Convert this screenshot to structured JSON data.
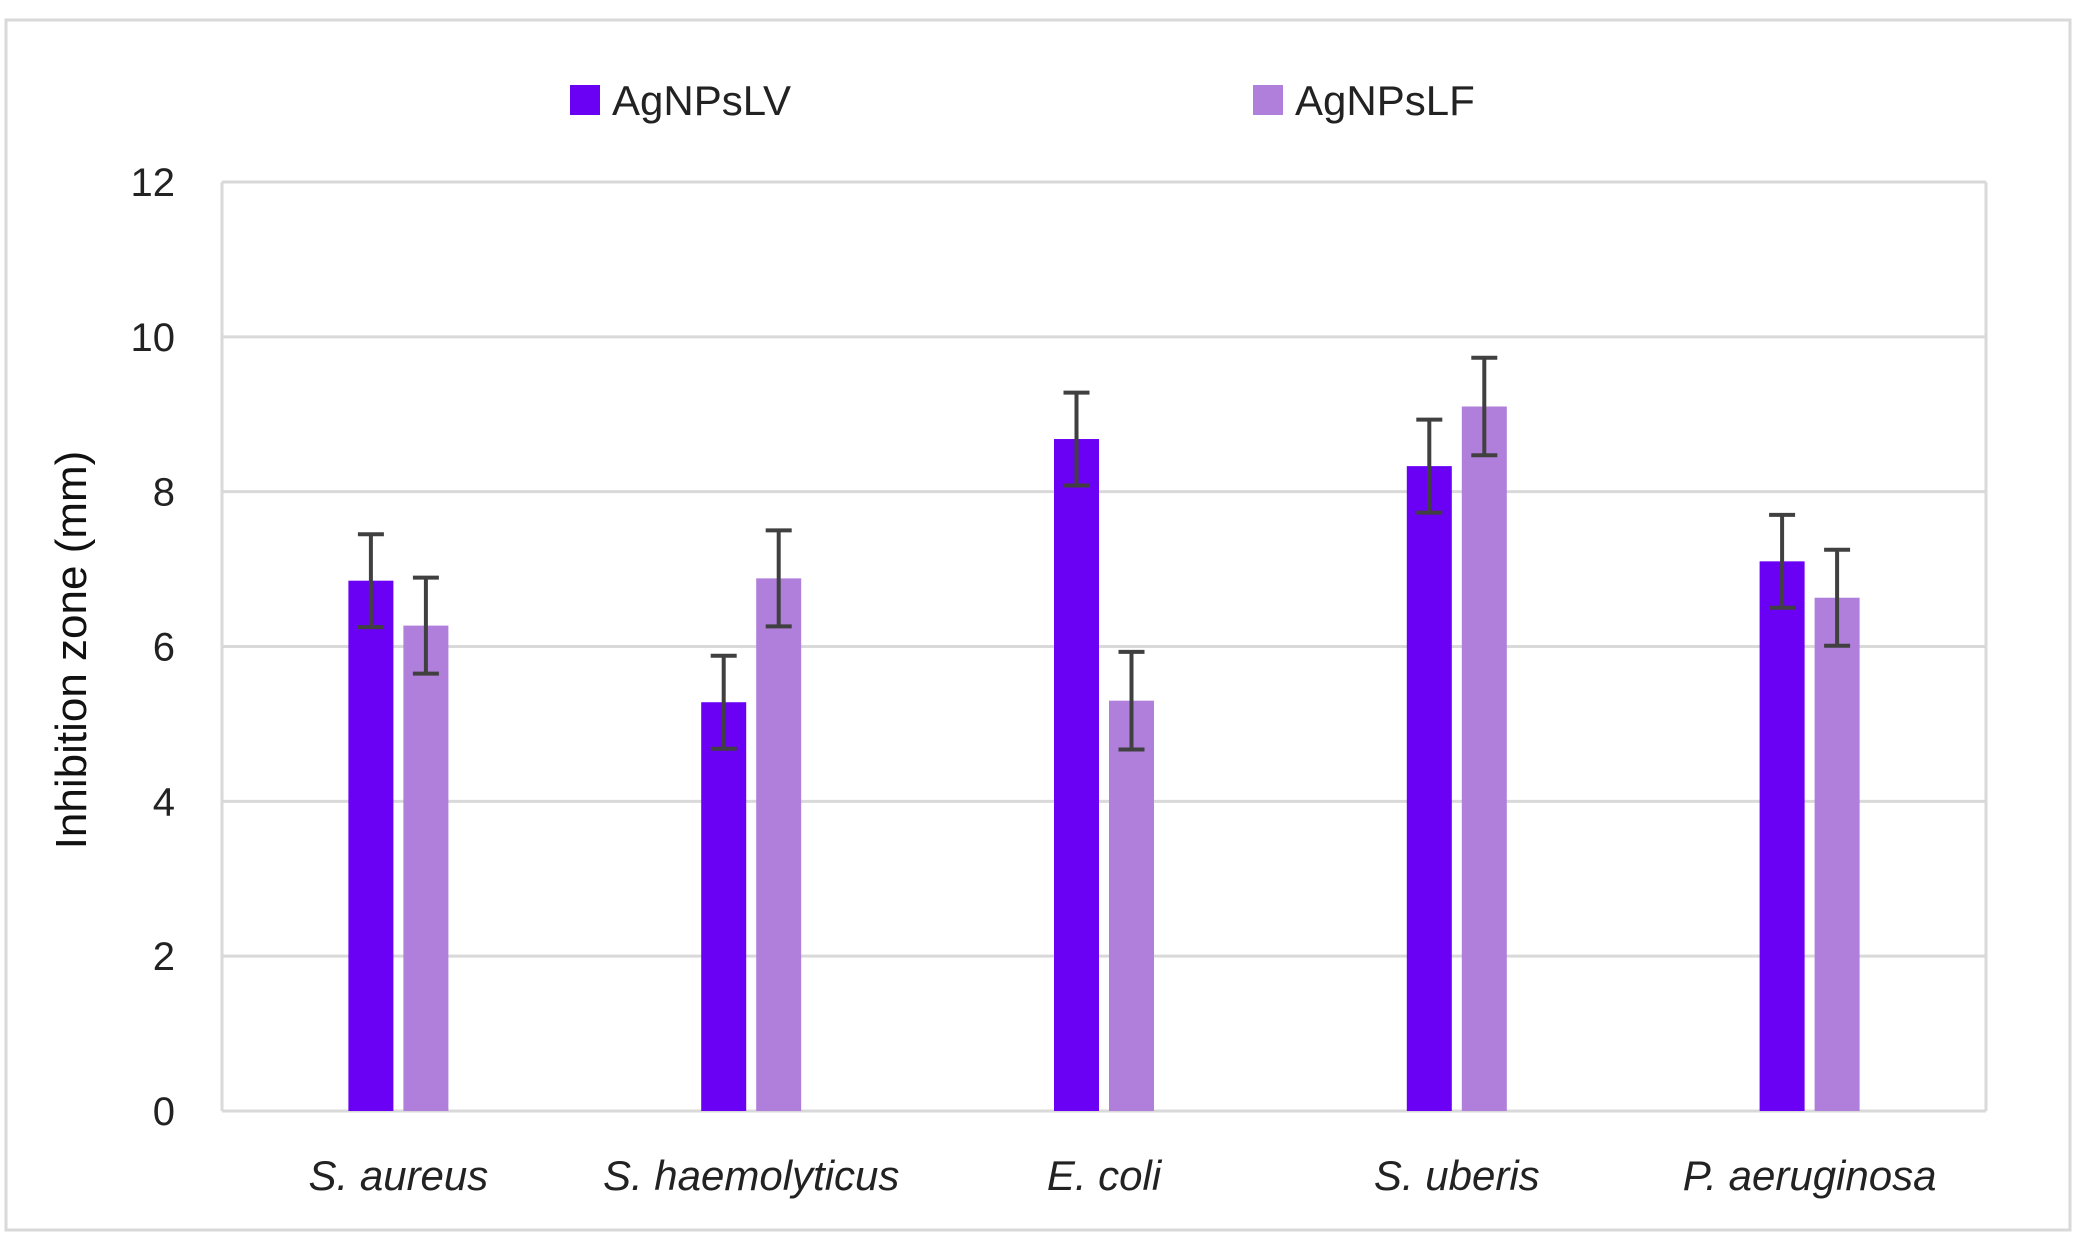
{
  "chart_data": {
    "type": "bar",
    "title": "",
    "xlabel": "",
    "ylabel": "Inhibition zone (mm)",
    "ylim": [
      0,
      12
    ],
    "yticks": [
      0,
      2,
      4,
      6,
      8,
      10,
      12
    ],
    "grid": true,
    "legend_position": "top",
    "categories": [
      "S. aureus",
      "S. haemolyticus",
      "E. coli",
      "S. uberis",
      "P. aeruginosa"
    ],
    "series": [
      {
        "name": "AgNPsLV",
        "color": "#6a00f4",
        "values": [
          6.85,
          5.28,
          8.68,
          8.33,
          7.1
        ],
        "errors": [
          0.6,
          0.6,
          0.6,
          0.6,
          0.6
        ]
      },
      {
        "name": "AgNPsLF",
        "color": "#b07fdb",
        "values": [
          6.27,
          6.88,
          5.3,
          9.1,
          6.63
        ],
        "errors": [
          0.62,
          0.62,
          0.63,
          0.63,
          0.62
        ]
      }
    ],
    "error_bar_color": "#404040",
    "frame_color": "#d9d9d9",
    "grid_color": "#d9d9d9"
  }
}
